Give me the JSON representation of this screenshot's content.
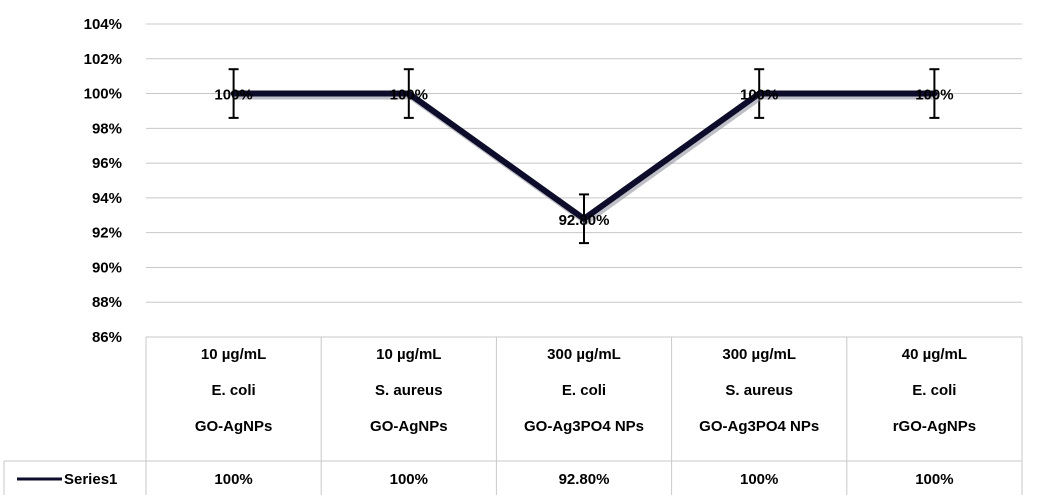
{
  "chart_data": {
    "type": "line",
    "categories": [
      [
        "10 µg/mL",
        "E. coli",
        "GO-AgNPs"
      ],
      [
        "10 µg/mL",
        "S. aureus",
        "GO-AgNPs"
      ],
      [
        "300 µg/mL",
        "E. coli",
        "GO-Ag3PO4 NPs"
      ],
      [
        "300 µg/mL",
        "S. aureus",
        "GO-Ag3PO4 NPs"
      ],
      [
        "40 µg/mL",
        "E. coli",
        "rGO-AgNPs"
      ]
    ],
    "series": [
      {
        "name": "Series1",
        "values": [
          100,
          100,
          92.8,
          100,
          100
        ],
        "data_labels": [
          "100%",
          "100%",
          "92.80%",
          "100%",
          "100%"
        ],
        "table_values": [
          "100%",
          "100%",
          "92.80%",
          "100%",
          "100%"
        ],
        "error": [
          1.4,
          1.4,
          1.4,
          1.4,
          1.4
        ],
        "color": "#0d0d2b"
      }
    ],
    "y_ticks": [
      "104%",
      "102%",
      "100%",
      "98%",
      "96%",
      "94%",
      "92%",
      "90%",
      "88%",
      "86%"
    ],
    "ylim": [
      86,
      104
    ],
    "grid": true,
    "legend": "data-table"
  }
}
